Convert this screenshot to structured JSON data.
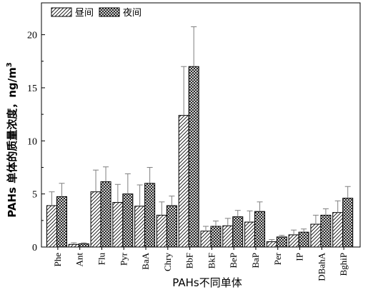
{
  "chart_data": {
    "type": "bar",
    "categories": [
      "Phe",
      "Ant",
      "Flu",
      "Pyr",
      "BaA",
      "Chry",
      "BbF",
      "BkF",
      "BeP",
      "BaP",
      "Per",
      "IP",
      "DBahA",
      "BghiP"
    ],
    "series": [
      {
        "name": "昼间",
        "pattern": "diagonal-hatch",
        "values": [
          3.9,
          0.25,
          5.2,
          4.2,
          3.85,
          3.0,
          12.4,
          1.5,
          2.0,
          2.35,
          0.5,
          1.15,
          2.15,
          3.25
        ],
        "errors": [
          1.3,
          0.15,
          2.05,
          1.7,
          2.0,
          1.25,
          4.6,
          0.45,
          0.7,
          1.05,
          0.2,
          0.45,
          0.85,
          1.1
        ]
      },
      {
        "name": "夜间",
        "pattern": "cross-hatch",
        "values": [
          4.75,
          0.3,
          6.15,
          5.0,
          6.0,
          3.9,
          17.0,
          1.95,
          2.85,
          3.35,
          0.95,
          1.4,
          3.0,
          4.6
        ],
        "errors": [
          1.25,
          0.1,
          1.4,
          1.9,
          1.5,
          0.9,
          3.75,
          0.5,
          0.6,
          0.9,
          0.15,
          0.3,
          0.6,
          1.1
        ]
      }
    ],
    "xlabel": "PAHs不同单体",
    "ylabel": "PAHs 单体的质量浓度，ng/m",
    "ylabel_superscript": "3",
    "ylim": [
      0,
      23
    ],
    "yticks": [
      0,
      5,
      10,
      15,
      20
    ],
    "ytick_labels": [
      "0",
      "5",
      "10",
      "15",
      "20"
    ],
    "legend_position": "top-left",
    "grid": false,
    "colors": {
      "bar_fill": "#ffffff",
      "stroke": "#000000",
      "error": "#7f7f7f"
    }
  }
}
